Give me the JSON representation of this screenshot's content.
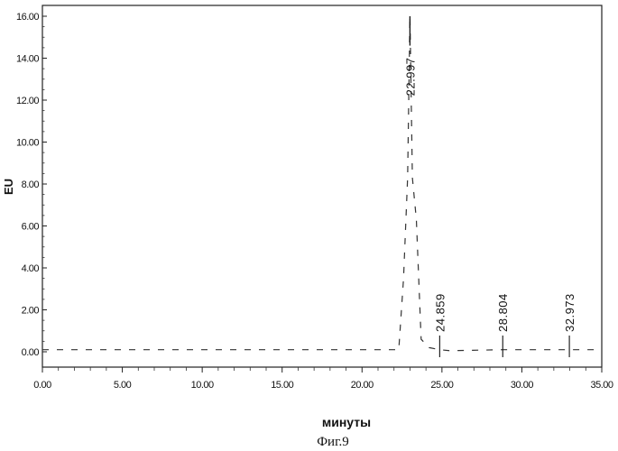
{
  "chart_data": {
    "type": "line",
    "title": "",
    "xlabel": "минуты",
    "ylabel": "EU",
    "caption": "Фиг.9",
    "xlim": [
      0,
      35
    ],
    "ylim": [
      -0.5,
      16.5
    ],
    "grid": false,
    "x_ticks": [
      0,
      5,
      10,
      15,
      20,
      25,
      30,
      35
    ],
    "x_tick_labels": [
      "0.00",
      "5.00",
      "10.00",
      "15.00",
      "20.00",
      "25.00",
      "30.00",
      "35.00"
    ],
    "y_ticks": [
      0,
      2,
      4,
      6,
      8,
      10,
      12,
      14,
      16
    ],
    "y_tick_labels": [
      "0.00",
      "2.00",
      "4.00",
      "6.00",
      "8.00",
      "10.00",
      "12.00",
      "14.00",
      "16.00"
    ],
    "series": [
      {
        "x": [
          0,
          22.3,
          22.6,
          22.85,
          22.997,
          23.15,
          23.4,
          23.7,
          24.2,
          24.859,
          25.5,
          28.804,
          32.973,
          35
        ],
        "y": [
          0.1,
          0.1,
          3.5,
          8.3,
          16.0,
          8.3,
          6.3,
          0.6,
          0.2,
          0.1,
          0.05,
          0.1,
          0.1,
          0.1
        ]
      }
    ],
    "peaks": [
      {
        "x": 22.997,
        "label": "22.997",
        "height": 16.0
      },
      {
        "x": 24.859,
        "label": "24.859",
        "height": 0.15
      },
      {
        "x": 28.804,
        "label": "28.804",
        "height": 0.15
      },
      {
        "x": 32.973,
        "label": "32.973",
        "height": 0.15
      }
    ]
  }
}
